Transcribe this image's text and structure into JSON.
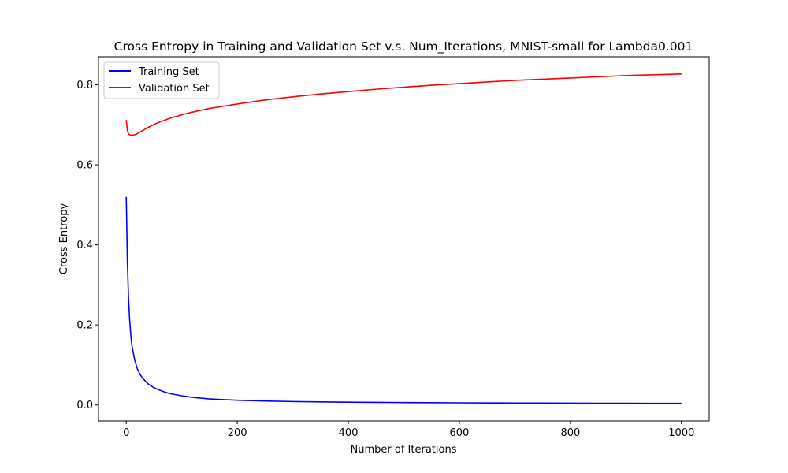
{
  "chart_data": {
    "type": "line",
    "title": "Cross Entropy in Training and Validation Set v.s. Num_Iterations, MNIST-small for Lambda0.001",
    "xlabel": "Number of Iterations",
    "ylabel": "Cross Entropy",
    "xlim": [
      -50,
      1050
    ],
    "ylim": [
      -0.04,
      0.87
    ],
    "xticks": [
      0,
      200,
      400,
      600,
      800,
      1000
    ],
    "yticks": [
      0.0,
      0.2,
      0.4,
      0.6,
      0.8
    ],
    "xtick_labels": [
      "0",
      "200",
      "400",
      "600",
      "800",
      "1000"
    ],
    "ytick_labels": [
      "0.0",
      "0.2",
      "0.4",
      "0.6",
      "0.8"
    ],
    "grid": false,
    "legend_position": "upper-left",
    "x": [
      0,
      2,
      4,
      6,
      8,
      10,
      15,
      20,
      25,
      30,
      40,
      50,
      60,
      70,
      80,
      100,
      120,
      150,
      200,
      250,
      300,
      350,
      400,
      450,
      500,
      550,
      600,
      650,
      700,
      750,
      800,
      850,
      900,
      950,
      1000
    ],
    "series": [
      {
        "name": "Training Set",
        "color": "#0000ff",
        "values": [
          0.52,
          0.36,
          0.27,
          0.215,
          0.178,
          0.15,
          0.113,
          0.09,
          0.076,
          0.066,
          0.052,
          0.043,
          0.037,
          0.032,
          0.028,
          0.023,
          0.019,
          0.015,
          0.0118,
          0.0098,
          0.0085,
          0.0076,
          0.007,
          0.0064,
          0.006,
          0.0056,
          0.0053,
          0.005,
          0.0048,
          0.0046,
          0.0044,
          0.0042,
          0.0041,
          0.004,
          0.0039
        ]
      },
      {
        "name": "Validation Set",
        "color": "#ff0000",
        "values": [
          0.712,
          0.686,
          0.678,
          0.675,
          0.674,
          0.674,
          0.675,
          0.678,
          0.682,
          0.686,
          0.694,
          0.701,
          0.707,
          0.712,
          0.717,
          0.725,
          0.732,
          0.741,
          0.752,
          0.762,
          0.77,
          0.777,
          0.783,
          0.789,
          0.794,
          0.799,
          0.803,
          0.807,
          0.811,
          0.814,
          0.817,
          0.82,
          0.823,
          0.825,
          0.827
        ]
      }
    ]
  }
}
